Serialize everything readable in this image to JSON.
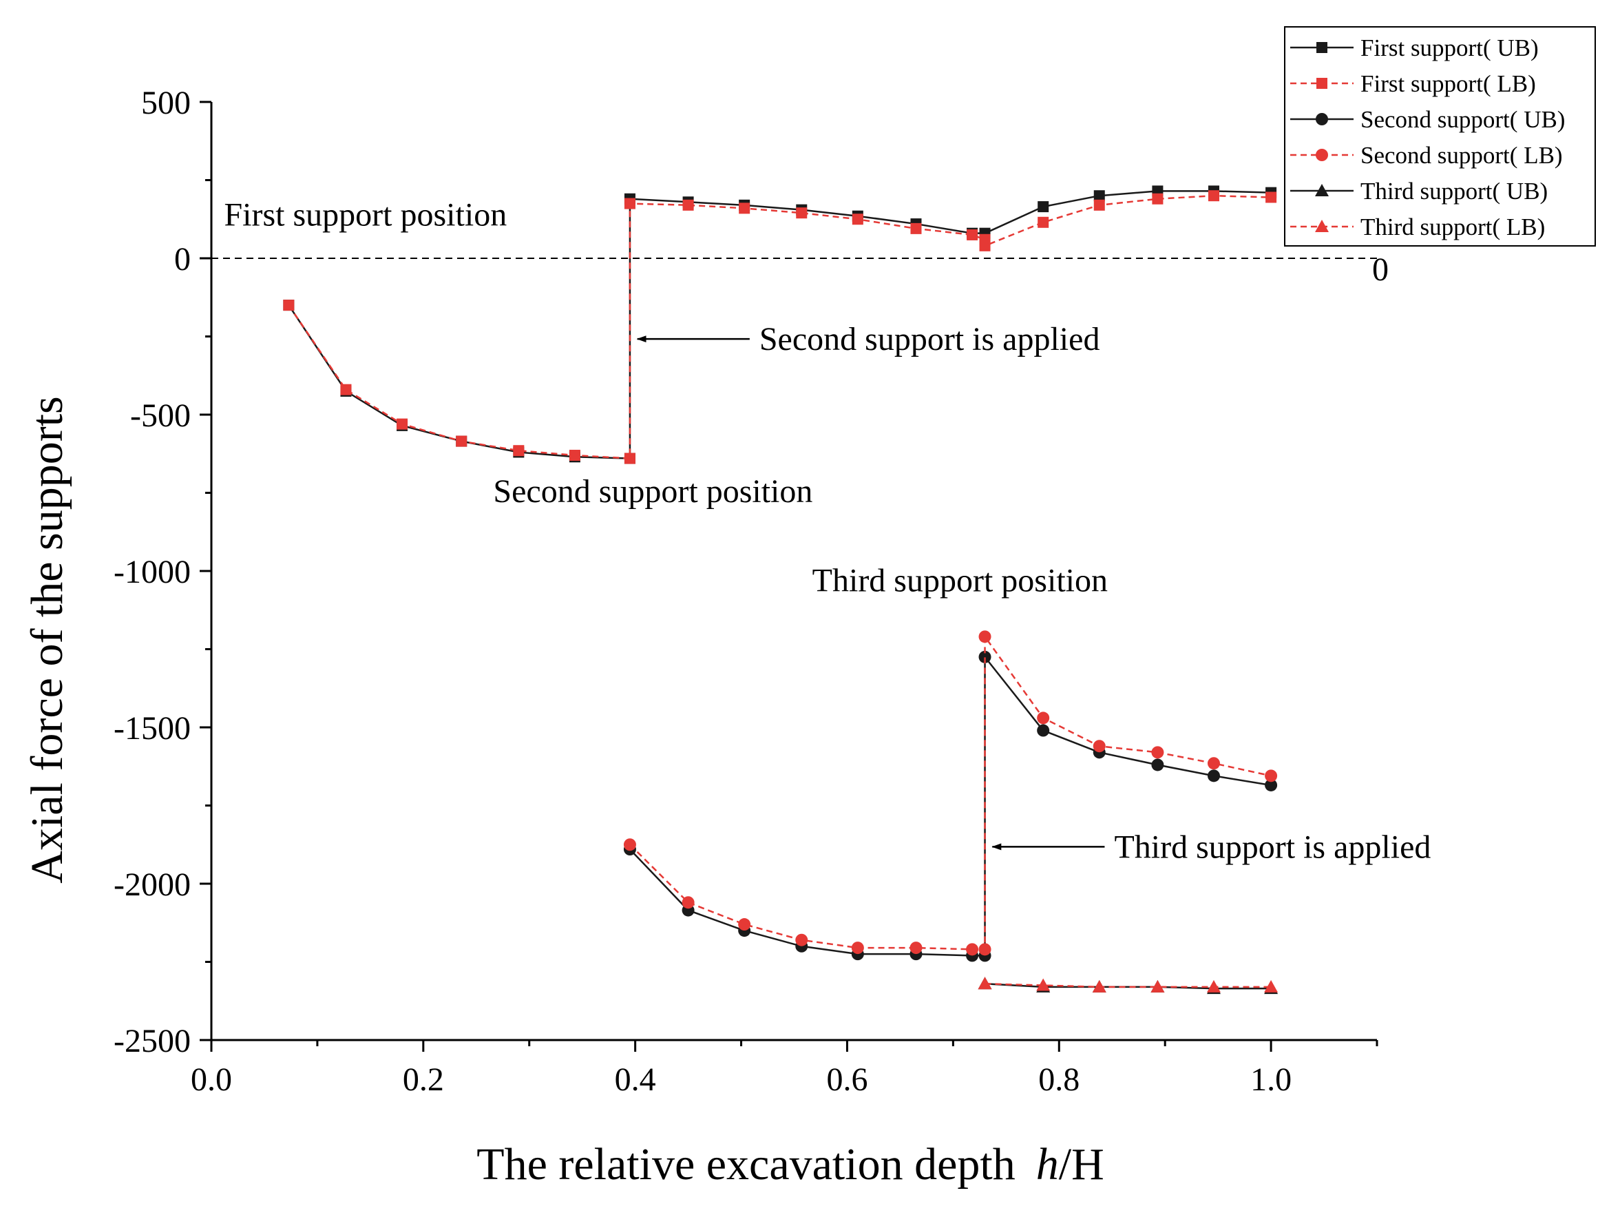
{
  "chart_data": {
    "type": "line",
    "title": "",
    "xlabel_main": "The relative excavation depth",
    "xlabel_italic": "h",
    "xlabel_tail": "/H",
    "ylabel": "Axial force of the supports",
    "xlim": [
      0.0,
      1.1
    ],
    "ylim": [
      -2500,
      500
    ],
    "xticks": [
      0.0,
      0.2,
      0.4,
      0.6,
      0.8,
      1.0
    ],
    "xtick_labels": [
      "0.0",
      "0.2",
      "0.4",
      "0.6",
      "0.8",
      "1.0"
    ],
    "yticks": [
      500,
      0,
      -500,
      -1000,
      -1500,
      -2000,
      -2500
    ],
    "ytick_labels": [
      "500",
      "0",
      "-500",
      "-1000",
      "-1500",
      "-2000",
      "-2500"
    ],
    "zero_line_label": "0",
    "legend_position": "top-right",
    "series": [
      {
        "name": "First support( UB)",
        "color": "#1a1a1a",
        "dashed": false,
        "marker": "square",
        "x": [
          0.073,
          0.127,
          0.18,
          0.236,
          0.29,
          0.343,
          0.395,
          0.395,
          0.45,
          0.503,
          0.557,
          0.61,
          0.665,
          0.718,
          0.73,
          0.785,
          0.838,
          0.893,
          0.946,
          1.0
        ],
        "y": [
          -150,
          -425,
          -535,
          -585,
          -620,
          -635,
          -640,
          190,
          180,
          170,
          155,
          135,
          110,
          80,
          80,
          165,
          200,
          215,
          215,
          210
        ]
      },
      {
        "name": "First support( LB)",
        "color": "#e53935",
        "dashed": true,
        "marker": "square",
        "x": [
          0.073,
          0.127,
          0.18,
          0.236,
          0.29,
          0.343,
          0.395,
          0.395,
          0.45,
          0.503,
          0.557,
          0.61,
          0.665,
          0.718,
          0.73,
          0.73,
          0.785,
          0.838,
          0.893,
          0.946,
          1.0
        ],
        "y": [
          -150,
          -420,
          -530,
          -585,
          -615,
          -630,
          -640,
          175,
          170,
          160,
          145,
          125,
          95,
          75,
          60,
          40,
          115,
          170,
          190,
          200,
          195
        ]
      },
      {
        "name": "Second support( UB)",
        "color": "#1a1a1a",
        "dashed": false,
        "marker": "circle",
        "x": [
          0.395,
          0.45,
          0.503,
          0.557,
          0.61,
          0.665,
          0.718,
          0.73,
          0.73,
          0.785,
          0.838,
          0.893,
          0.946,
          1.0
        ],
        "y": [
          -1890,
          -2085,
          -2150,
          -2200,
          -2225,
          -2225,
          -2230,
          -2230,
          -1275,
          -1510,
          -1580,
          -1620,
          -1655,
          -1685
        ]
      },
      {
        "name": "Second support( LB)",
        "color": "#e53935",
        "dashed": true,
        "marker": "circle",
        "x": [
          0.395,
          0.45,
          0.503,
          0.557,
          0.61,
          0.665,
          0.718,
          0.73,
          0.73,
          0.785,
          0.838,
          0.893,
          0.946,
          1.0
        ],
        "y": [
          -1875,
          -2060,
          -2130,
          -2180,
          -2205,
          -2205,
          -2210,
          -2210,
          -1210,
          -1470,
          -1560,
          -1580,
          -1615,
          -1655
        ]
      },
      {
        "name": "Third support( UB)",
        "color": "#1a1a1a",
        "dashed": false,
        "marker": "triangle",
        "x": [
          0.73,
          0.785,
          0.838,
          0.893,
          0.946,
          1.0
        ],
        "y": [
          -2320,
          -2330,
          -2330,
          -2330,
          -2335,
          -2335
        ]
      },
      {
        "name": "Third support( LB)",
        "color": "#e53935",
        "dashed": true,
        "marker": "triangle",
        "x": [
          0.73,
          0.785,
          0.838,
          0.893,
          0.946,
          1.0
        ],
        "y": [
          -2320,
          -2325,
          -2330,
          -2330,
          -2330,
          -2330
        ]
      }
    ],
    "annotations": [
      {
        "text": "First support position",
        "x": 0.012,
        "y": 105,
        "anchor": "start"
      },
      {
        "text": "Second support position",
        "x": 0.266,
        "y": -780,
        "anchor": "start"
      },
      {
        "text": "Third support position",
        "x": 0.567,
        "y": -1065,
        "anchor": "start"
      }
    ],
    "arrows": [
      {
        "text": "Second support is applied",
        "tail_x": 0.508,
        "head_x": 0.402,
        "y": -258
      },
      {
        "text": "Third support is applied",
        "tail_x": 0.843,
        "head_x": 0.737,
        "y": -1882
      }
    ]
  }
}
